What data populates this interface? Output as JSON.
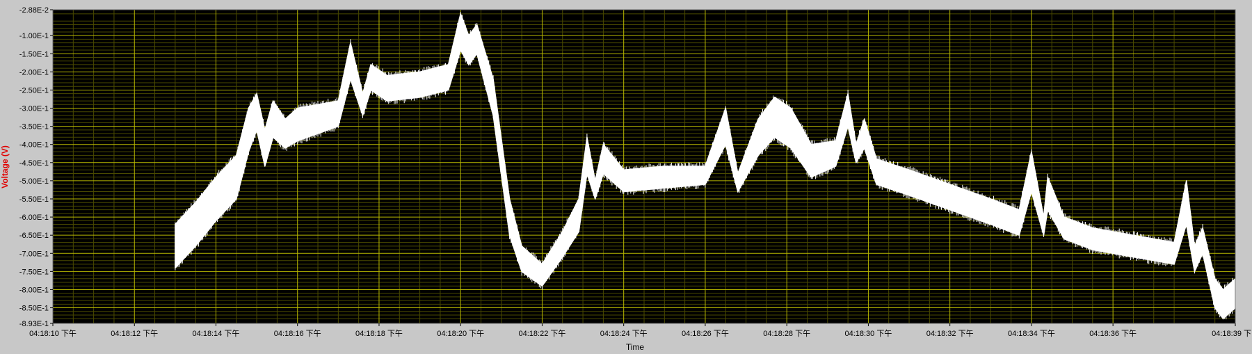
{
  "chart_data": {
    "type": "line",
    "title": "",
    "xlabel": "Time",
    "ylabel": "Voltage (V)",
    "colors": {
      "background": "#c8c8c8",
      "plot_area": "#000000",
      "grid_major": "#b8b800",
      "grid_minor": "#4a4a00",
      "trace": "#ffffff",
      "ylabel": "#e00000",
      "tick_text": "#000000"
    },
    "grid": true,
    "xlim_seconds": [
      10,
      39
    ],
    "ylim": [
      -0.893,
      -0.0288
    ],
    "y_ticks": [
      {
        "value": -0.0288,
        "label": "-2.88E-2"
      },
      {
        "value": -0.1,
        "label": "-1.00E-1"
      },
      {
        "value": -0.15,
        "label": "-1.50E-1"
      },
      {
        "value": -0.2,
        "label": "-2.00E-1"
      },
      {
        "value": -0.25,
        "label": "-2.50E-1"
      },
      {
        "value": -0.3,
        "label": "-3.00E-1"
      },
      {
        "value": -0.35,
        "label": "-3.50E-1"
      },
      {
        "value": -0.4,
        "label": "-4.00E-1"
      },
      {
        "value": -0.45,
        "label": "-4.50E-1"
      },
      {
        "value": -0.5,
        "label": "-5.00E-1"
      },
      {
        "value": -0.55,
        "label": "-5.50E-1"
      },
      {
        "value": -0.6,
        "label": "-6.00E-1"
      },
      {
        "value": -0.65,
        "label": "-6.50E-1"
      },
      {
        "value": -0.7,
        "label": "-7.00E-1"
      },
      {
        "value": -0.75,
        "label": "-7.50E-1"
      },
      {
        "value": -0.8,
        "label": "-8.00E-1"
      },
      {
        "value": -0.85,
        "label": "-8.50E-1"
      },
      {
        "value": -0.893,
        "label": "-8.93E-1"
      }
    ],
    "x_ticks": [
      {
        "value": 10,
        "label": "04:18:10 下午"
      },
      {
        "value": 12,
        "label": "04:18:12 下午"
      },
      {
        "value": 14,
        "label": "04:18:14 下午"
      },
      {
        "value": 16,
        "label": "04:18:16 下午"
      },
      {
        "value": 18,
        "label": "04:18:18 下午"
      },
      {
        "value": 20,
        "label": "04:18:20 下午"
      },
      {
        "value": 22,
        "label": "04:18:22 下午"
      },
      {
        "value": 24,
        "label": "04:18:24 下午"
      },
      {
        "value": 26,
        "label": "04:18:26 下午"
      },
      {
        "value": 28,
        "label": "04:18:28 下午"
      },
      {
        "value": 30,
        "label": "04:18:30 下午"
      },
      {
        "value": 32,
        "label": "04:18:32 下午"
      },
      {
        "value": 34,
        "label": "04:18:34 下午"
      },
      {
        "value": 36,
        "label": "04:18:36 下午"
      },
      {
        "value": 39,
        "label": "04:18:39 下"
      }
    ],
    "series": [
      {
        "band": [
          {
            "t": 13.0,
            "upper": -0.62,
            "lower": -0.74
          },
          {
            "t": 13.5,
            "upper": -0.56,
            "lower": -0.68
          },
          {
            "t": 14.0,
            "upper": -0.49,
            "lower": -0.61
          },
          {
            "t": 14.5,
            "upper": -0.43,
            "lower": -0.55
          },
          {
            "t": 14.8,
            "upper": -0.3,
            "lower": -0.42
          },
          {
            "t": 15.0,
            "upper": -0.26,
            "lower": -0.36
          },
          {
            "t": 15.2,
            "upper": -0.36,
            "lower": -0.46
          },
          {
            "t": 15.4,
            "upper": -0.28,
            "lower": -0.38
          },
          {
            "t": 15.7,
            "upper": -0.33,
            "lower": -0.41
          },
          {
            "t": 16.0,
            "upper": -0.3,
            "lower": -0.39
          },
          {
            "t": 16.5,
            "upper": -0.29,
            "lower": -0.37
          },
          {
            "t": 17.0,
            "upper": -0.28,
            "lower": -0.35
          },
          {
            "t": 17.3,
            "upper": -0.12,
            "lower": -0.22
          },
          {
            "t": 17.6,
            "upper": -0.26,
            "lower": -0.32
          },
          {
            "t": 17.8,
            "upper": -0.18,
            "lower": -0.25
          },
          {
            "t": 18.2,
            "upper": -0.21,
            "lower": -0.28
          },
          {
            "t": 19.0,
            "upper": -0.2,
            "lower": -0.27
          },
          {
            "t": 19.7,
            "upper": -0.18,
            "lower": -0.25
          },
          {
            "t": 20.0,
            "upper": -0.04,
            "lower": -0.14
          },
          {
            "t": 20.2,
            "upper": -0.1,
            "lower": -0.18
          },
          {
            "t": 20.4,
            "upper": -0.07,
            "lower": -0.15
          },
          {
            "t": 20.8,
            "upper": -0.22,
            "lower": -0.32
          },
          {
            "t": 21.2,
            "upper": -0.55,
            "lower": -0.65
          },
          {
            "t": 21.5,
            "upper": -0.68,
            "lower": -0.75
          },
          {
            "t": 22.0,
            "upper": -0.73,
            "lower": -0.79
          },
          {
            "t": 22.5,
            "upper": -0.64,
            "lower": -0.71
          },
          {
            "t": 22.9,
            "upper": -0.55,
            "lower": -0.64
          },
          {
            "t": 23.1,
            "upper": -0.38,
            "lower": -0.48
          },
          {
            "t": 23.3,
            "upper": -0.5,
            "lower": -0.55
          },
          {
            "t": 23.5,
            "upper": -0.4,
            "lower": -0.48
          },
          {
            "t": 24.0,
            "upper": -0.47,
            "lower": -0.53
          },
          {
            "t": 25.0,
            "upper": -0.46,
            "lower": -0.52
          },
          {
            "t": 26.0,
            "upper": -0.46,
            "lower": -0.51
          },
          {
            "t": 26.5,
            "upper": -0.3,
            "lower": -0.4
          },
          {
            "t": 26.8,
            "upper": -0.48,
            "lower": -0.53
          },
          {
            "t": 27.3,
            "upper": -0.33,
            "lower": -0.43
          },
          {
            "t": 27.7,
            "upper": -0.27,
            "lower": -0.38
          },
          {
            "t": 28.1,
            "upper": -0.3,
            "lower": -0.41
          },
          {
            "t": 28.6,
            "upper": -0.4,
            "lower": -0.49
          },
          {
            "t": 29.2,
            "upper": -0.39,
            "lower": -0.46
          },
          {
            "t": 29.5,
            "upper": -0.26,
            "lower": -0.35
          },
          {
            "t": 29.7,
            "upper": -0.4,
            "lower": -0.45
          },
          {
            "t": 29.9,
            "upper": -0.33,
            "lower": -0.41
          },
          {
            "t": 30.2,
            "upper": -0.44,
            "lower": -0.51
          },
          {
            "t": 31.0,
            "upper": -0.47,
            "lower": -0.54
          },
          {
            "t": 32.0,
            "upper": -0.51,
            "lower": -0.58
          },
          {
            "t": 33.0,
            "upper": -0.55,
            "lower": -0.62
          },
          {
            "t": 33.7,
            "upper": -0.58,
            "lower": -0.65
          },
          {
            "t": 34.0,
            "upper": -0.42,
            "lower": -0.53
          },
          {
            "t": 34.3,
            "upper": -0.6,
            "lower": -0.65
          },
          {
            "t": 34.4,
            "upper": -0.49,
            "lower": -0.58
          },
          {
            "t": 34.8,
            "upper": -0.6,
            "lower": -0.66
          },
          {
            "t": 35.5,
            "upper": -0.63,
            "lower": -0.69
          },
          {
            "t": 36.5,
            "upper": -0.65,
            "lower": -0.71
          },
          {
            "t": 37.5,
            "upper": -0.67,
            "lower": -0.73
          },
          {
            "t": 37.8,
            "upper": -0.5,
            "lower": -0.62
          },
          {
            "t": 38.0,
            "upper": -0.68,
            "lower": -0.75
          },
          {
            "t": 38.2,
            "upper": -0.63,
            "lower": -0.7
          },
          {
            "t": 38.5,
            "upper": -0.77,
            "lower": -0.85
          },
          {
            "t": 38.7,
            "upper": -0.8,
            "lower": -0.88
          },
          {
            "t": 39.0,
            "upper": -0.77,
            "lower": -0.85
          }
        ]
      }
    ]
  }
}
